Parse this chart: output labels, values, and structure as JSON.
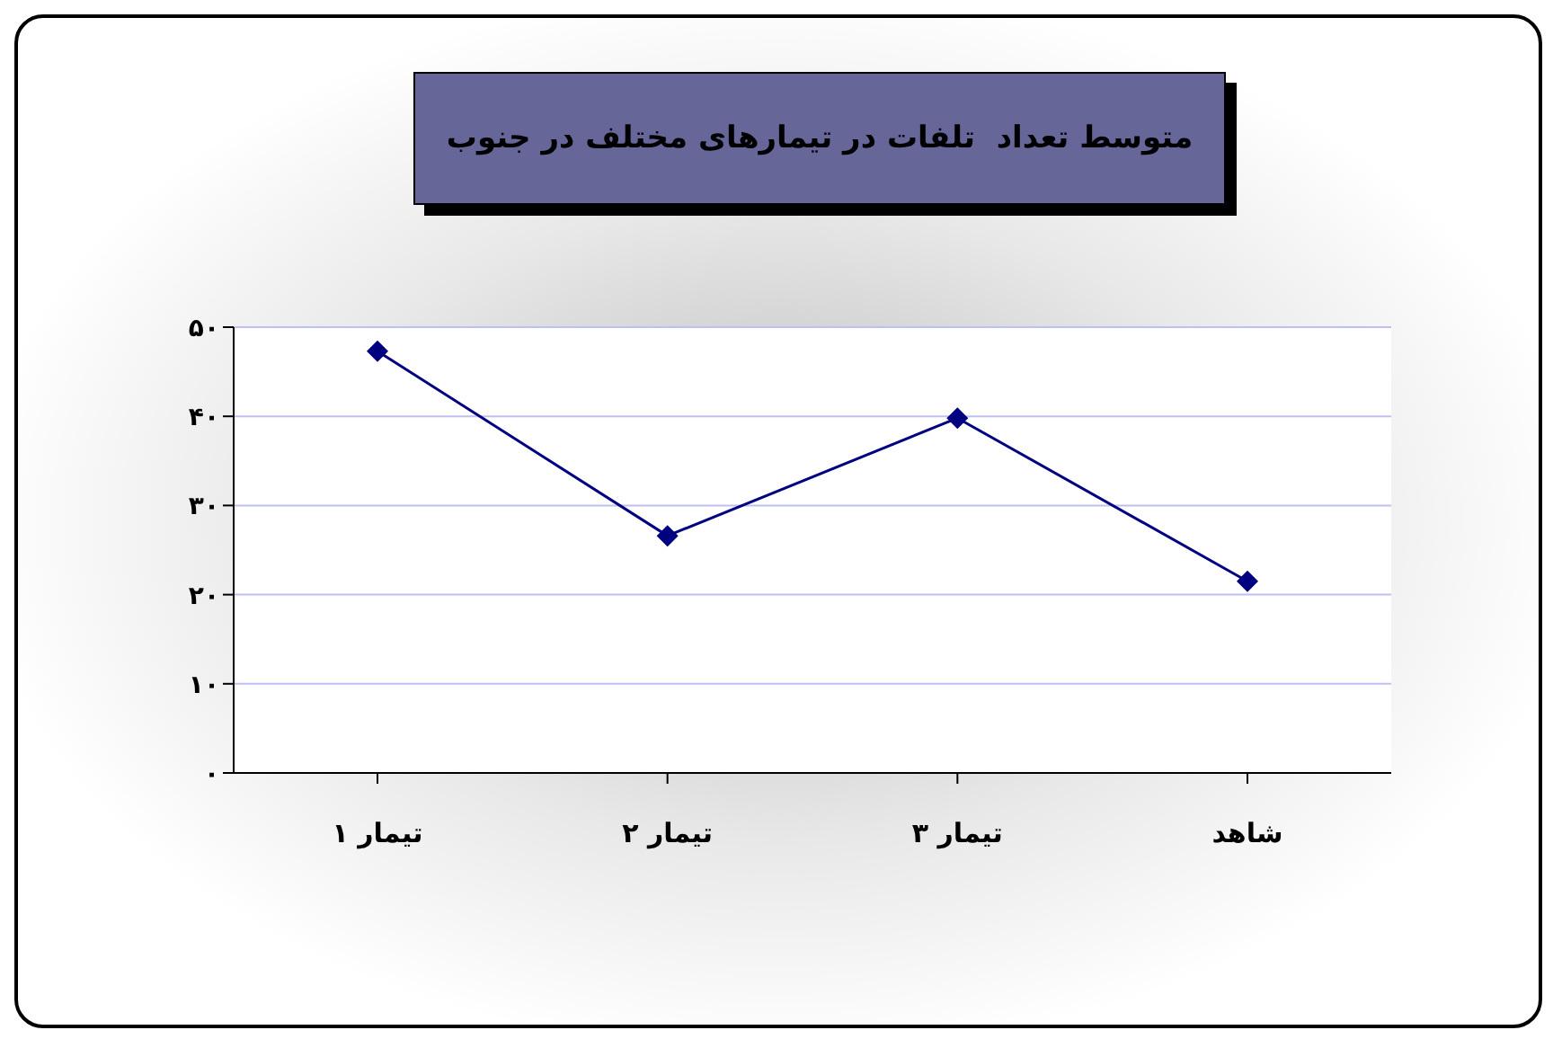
{
  "chart_data": {
    "type": "line",
    "title": "متوسط تعداد  تلفات در تیمارهای مختلف در جنوب",
    "categories": [
      "تیمار ۱",
      "تیمار ۲",
      "تیمار ۳",
      "شاهد"
    ],
    "series": [
      {
        "color": "#000080",
        "values": [
          47.3,
          26.6,
          39.8,
          21.5
        ]
      }
    ],
    "ylim": [
      0,
      50
    ],
    "yticks": [
      {
        "value": 0,
        "label": "۰"
      },
      {
        "value": 10,
        "label": "۱۰"
      },
      {
        "value": 20,
        "label": "۲۰"
      },
      {
        "value": 30,
        "label": "۳۰"
      },
      {
        "value": 40,
        "label": "۴۰"
      },
      {
        "value": 50,
        "label": "۵۰"
      }
    ],
    "grid": "y",
    "marker": "diamond",
    "line_style": "solid"
  }
}
